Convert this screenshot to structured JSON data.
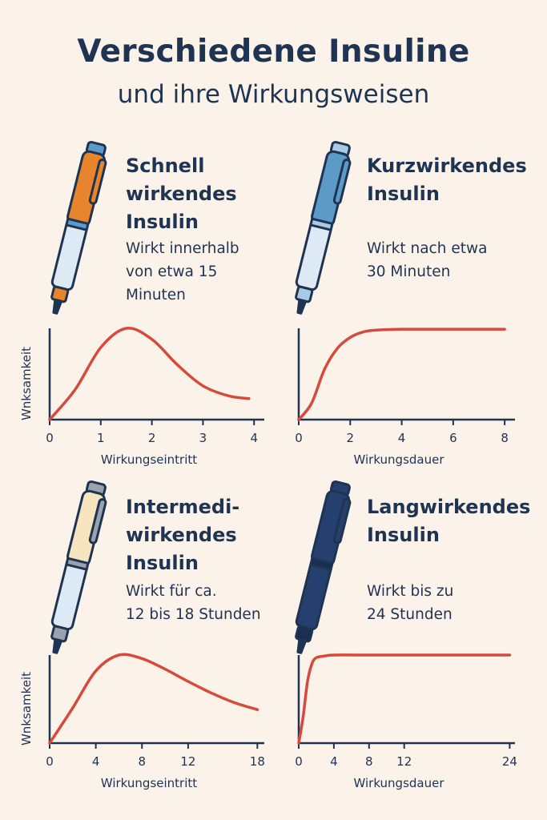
{
  "header": {
    "title": "Verschiedene Insuline",
    "subtitle": "und ihre Wirkungsweisen"
  },
  "cards": [
    {
      "title": "Schnell\nwirkendes\nInsulin",
      "desc": "Wirkt innerhalb\nvon etwa 15\nMinuten",
      "pen_icon": "orange-insulin-pen-icon",
      "pen_color": "#e8842c"
    },
    {
      "title": "Kurzwirkendes\nInsulin",
      "desc": "Wirkt nach etwa\n30 Minuten",
      "pen_icon": "light-blue-insulin-pen-icon",
      "pen_color": "#5c9bc8"
    },
    {
      "title": "Intermedi-\nwirkendes\nInsulin",
      "desc": "Wirkt für ca.\n12 bis 18 Stunden",
      "pen_icon": "cream-insulin-pen-icon",
      "pen_color": "#f6e5bf"
    },
    {
      "title": "Langwirkendes\nInsulin",
      "desc": "Wirkt bis zu\n24 Stunden",
      "pen_icon": "navy-insulin-pen-icon",
      "pen_color": "#253f6e"
    }
  ],
  "chart_data": [
    {
      "type": "line",
      "xlabel": "Wirkungseintritt",
      "ylabel": "Wnksamkeit",
      "xticks": [
        0,
        1,
        2,
        3,
        4
      ],
      "xlim": [
        0,
        4.2
      ],
      "ylim": [
        0,
        1
      ],
      "grid": false,
      "line_color": "#d64a3b",
      "series": [
        {
          "x": [
            0,
            0.5,
            1,
            1.5,
            2,
            2.5,
            3,
            3.5,
            3.9
          ],
          "y": [
            0,
            0.33,
            0.79,
            1.0,
            0.88,
            0.6,
            0.37,
            0.26,
            0.23
          ]
        }
      ]
    },
    {
      "type": "line",
      "xlabel": "Wirkungsdauer",
      "ylabel": "",
      "xticks": [
        0,
        2,
        4,
        6,
        8
      ],
      "xlim": [
        0,
        8.4
      ],
      "ylim": [
        0,
        1
      ],
      "grid": false,
      "line_color": "#d64a3b",
      "series": [
        {
          "x": [
            0,
            0.5,
            1,
            1.5,
            2,
            2.5,
            3,
            4,
            5,
            6,
            8
          ],
          "y": [
            0,
            0.18,
            0.55,
            0.78,
            0.9,
            0.96,
            0.98,
            0.99,
            0.99,
            0.99,
            0.99
          ]
        }
      ]
    },
    {
      "type": "line",
      "xlabel": "Wirkungseintritt",
      "ylabel": "Wnksamkeit",
      "xticks": [
        0,
        4,
        8,
        12,
        18
      ],
      "xlim": [
        0,
        18.6
      ],
      "ylim": [
        0,
        1
      ],
      "grid": false,
      "line_color": "#d64a3b",
      "series": [
        {
          "x": [
            0,
            2,
            4,
            6,
            8,
            10,
            12,
            14,
            16,
            18
          ],
          "y": [
            0,
            0.4,
            0.82,
            1.0,
            0.96,
            0.84,
            0.7,
            0.57,
            0.46,
            0.38
          ]
        }
      ]
    },
    {
      "type": "line",
      "xlabel": "Wirkungsdauer",
      "ylabel": "",
      "xticks": [
        0,
        4,
        8,
        12,
        24
      ],
      "xlim": [
        0,
        24.6
      ],
      "ylim": [
        0,
        1
      ],
      "grid": false,
      "line_color": "#d64a3b",
      "series": [
        {
          "x": [
            0,
            0.5,
            1,
            1.5,
            2,
            3,
            4,
            8,
            12,
            18,
            24
          ],
          "y": [
            0,
            0.3,
            0.7,
            0.9,
            0.97,
            0.99,
            1.0,
            1.0,
            1.0,
            1.0,
            1.0
          ]
        }
      ]
    }
  ]
}
